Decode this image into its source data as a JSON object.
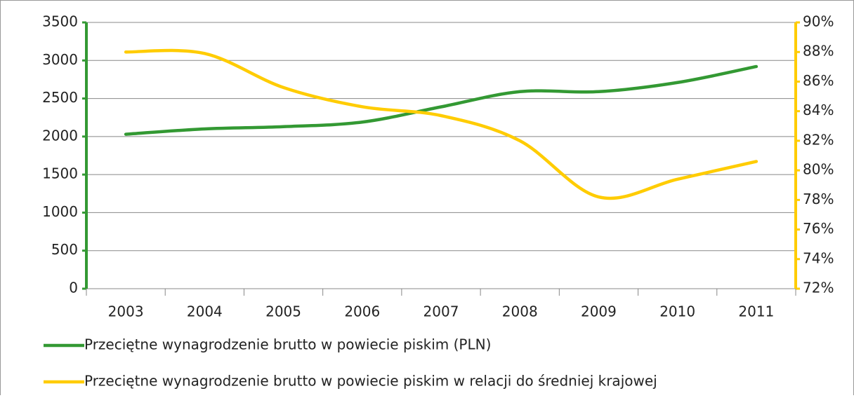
{
  "chart_data": {
    "type": "line",
    "categories": [
      "2003",
      "2004",
      "2005",
      "2006",
      "2007",
      "2008",
      "2009",
      "2010",
      "2011"
    ],
    "series": [
      {
        "name": "Przeciętne wynagrodzenie brutto w powiecie piskim (PLN)",
        "color": "#339933",
        "axis": "y",
        "values": [
          2030,
          2100,
          2130,
          2190,
          2390,
          2590,
          2590,
          2710,
          2920
        ]
      },
      {
        "name": "Przeciętne wynagrodzenie brutto w powiecie piskim w relacji do średniej krajowej",
        "color": "#ffcc00",
        "axis": "y2",
        "values": [
          88,
          87.9,
          85.6,
          84.3,
          83.7,
          82,
          78.2,
          79.4,
          80.6
        ]
      }
    ],
    "ylim": [
      0,
      3500
    ],
    "yticks": [
      0,
      500,
      1000,
      1500,
      2000,
      2500,
      3000,
      3500
    ],
    "y2lim": [
      72,
      90
    ],
    "y2ticks": [
      {
        "value": 72,
        "label": "72%"
      },
      {
        "value": 74,
        "label": "74%"
      },
      {
        "value": 76,
        "label": "76%"
      },
      {
        "value": 78,
        "label": "78%"
      },
      {
        "value": 80,
        "label": "80%"
      },
      {
        "value": 82,
        "label": "82%"
      },
      {
        "value": 84,
        "label": "84%"
      },
      {
        "value": 86,
        "label": "86%"
      },
      {
        "value": 88,
        "label": "88%"
      },
      {
        "value": 90,
        "label": "90%"
      }
    ],
    "grid": true,
    "legend": "bottom"
  }
}
